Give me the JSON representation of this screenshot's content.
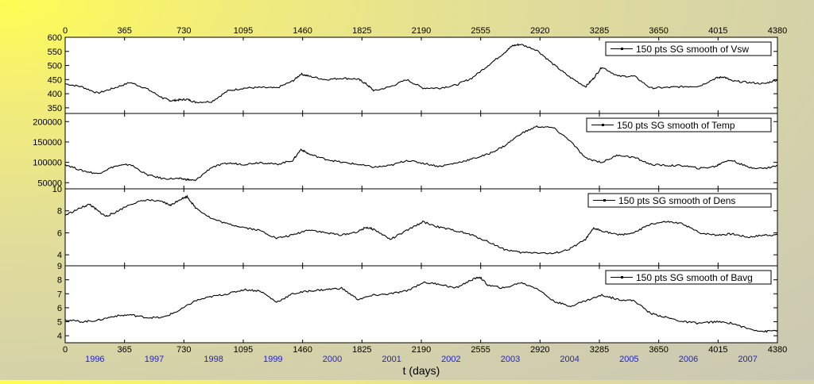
{
  "figure": {
    "xlabel": "t (days)",
    "x_ticks": [
      0,
      365,
      730,
      1095,
      1460,
      1825,
      2190,
      2555,
      2920,
      3285,
      3650,
      4015,
      4380
    ],
    "year_labels": [
      "1996",
      "1997",
      "1998",
      "1999",
      "2000",
      "2001",
      "2002",
      "2003",
      "2004",
      "2005",
      "2006",
      "2007"
    ],
    "colors": {
      "line": "#000000",
      "year_text": "#2222cc",
      "panel_bg": "#ffffff"
    }
  },
  "chart_data": [
    {
      "type": "line",
      "legend": "150 pts SG smooth of Vsw",
      "xlim": [
        0,
        4380
      ],
      "ylim": [
        330,
        600
      ],
      "y_ticks": [
        350,
        400,
        450,
        500,
        550,
        600
      ],
      "x": [
        0,
        100,
        200,
        300,
        400,
        500,
        600,
        650,
        700,
        750,
        800,
        900,
        1000,
        1100,
        1200,
        1300,
        1400,
        1450,
        1500,
        1600,
        1700,
        1800,
        1850,
        1900,
        2000,
        2100,
        2200,
        2300,
        2400,
        2500,
        2600,
        2700,
        2750,
        2800,
        2900,
        3000,
        3100,
        3200,
        3250,
        3300,
        3400,
        3500,
        3600,
        3700,
        3800,
        3900,
        4000,
        4050,
        4100,
        4200,
        4300,
        4380
      ],
      "y": [
        435,
        425,
        402,
        420,
        440,
        418,
        385,
        375,
        378,
        380,
        370,
        372,
        410,
        420,
        422,
        420,
        445,
        470,
        462,
        450,
        455,
        452,
        435,
        410,
        425,
        450,
        420,
        420,
        430,
        455,
        500,
        545,
        570,
        575,
        555,
        505,
        460,
        425,
        455,
        495,
        462,
        462,
        420,
        422,
        425,
        427,
        455,
        460,
        445,
        440,
        435,
        450
      ]
    },
    {
      "type": "line",
      "legend": "150 pts SG smooth of Temp",
      "xlim": [
        0,
        4380
      ],
      "ylim": [
        35000,
        220000
      ],
      "y_ticks": [
        50000,
        100000,
        150000,
        200000
      ],
      "x": [
        0,
        100,
        200,
        300,
        400,
        500,
        600,
        700,
        750,
        800,
        900,
        1000,
        1100,
        1200,
        1300,
        1400,
        1450,
        1500,
        1600,
        1700,
        1800,
        1900,
        2000,
        2100,
        2200,
        2300,
        2400,
        2500,
        2600,
        2700,
        2800,
        2900,
        3000,
        3100,
        3200,
        3300,
        3400,
        3500,
        3600,
        3700,
        3800,
        3900,
        4000,
        4050,
        4100,
        4200,
        4300,
        4380
      ],
      "y": [
        95000,
        80000,
        72000,
        90000,
        95000,
        70000,
        60000,
        60000,
        58000,
        55000,
        88000,
        98000,
        95000,
        100000,
        95000,
        105000,
        132000,
        120000,
        108000,
        100000,
        95000,
        88000,
        92000,
        105000,
        98000,
        90000,
        98000,
        108000,
        120000,
        140000,
        170000,
        188000,
        185000,
        155000,
        110000,
        100000,
        118000,
        112000,
        95000,
        92000,
        92000,
        85000,
        90000,
        102000,
        105000,
        88000,
        85000,
        92000
      ]
    },
    {
      "type": "line",
      "legend": "150 pts SG smooth of Dens",
      "xlim": [
        0,
        4380
      ],
      "ylim": [
        3,
        10
      ],
      "y_ticks": [
        4,
        6,
        8,
        10
      ],
      "x": [
        0,
        100,
        150,
        200,
        250,
        300,
        400,
        500,
        600,
        650,
        700,
        750,
        800,
        900,
        1000,
        1100,
        1200,
        1300,
        1400,
        1500,
        1600,
        1700,
        1800,
        1850,
        1900,
        2000,
        2100,
        2200,
        2300,
        2400,
        2500,
        2600,
        2700,
        2800,
        2900,
        3000,
        3100,
        3200,
        3250,
        3300,
        3400,
        3500,
        3600,
        3700,
        3800,
        3900,
        4000,
        4100,
        4200,
        4300,
        4380
      ],
      "y": [
        7.6,
        8.3,
        8.6,
        8.0,
        7.5,
        7.8,
        8.6,
        9.0,
        8.8,
        8.5,
        9.0,
        9.3,
        8.3,
        7.3,
        6.8,
        6.5,
        6.2,
        5.5,
        5.8,
        6.3,
        6.0,
        5.8,
        6.1,
        6.5,
        6.3,
        5.4,
        6.2,
        7.0,
        6.5,
        6.2,
        5.8,
        5.2,
        4.5,
        4.2,
        4.2,
        4.1,
        4.5,
        5.4,
        6.4,
        6.2,
        5.8,
        6.0,
        6.8,
        7.0,
        6.8,
        6.0,
        5.8,
        5.9,
        5.6,
        5.8,
        5.8
      ]
    },
    {
      "type": "line",
      "legend": "150 pts SG smooth of Bavg",
      "xlim": [
        0,
        4380
      ],
      "ylim": [
        3.5,
        9
      ],
      "y_ticks": [
        4,
        5,
        6,
        7,
        8,
        9
      ],
      "x": [
        0,
        100,
        200,
        300,
        400,
        500,
        600,
        700,
        800,
        900,
        1000,
        1100,
        1200,
        1300,
        1400,
        1500,
        1600,
        1700,
        1800,
        1900,
        2000,
        2100,
        2200,
        2300,
        2400,
        2500,
        2550,
        2600,
        2700,
        2800,
        2900,
        3000,
        3100,
        3200,
        3300,
        3400,
        3500,
        3600,
        3700,
        3800,
        3900,
        4000,
        4100,
        4200,
        4300,
        4380
      ],
      "y": [
        5.15,
        5.0,
        5.1,
        5.4,
        5.5,
        5.3,
        5.3,
        5.8,
        6.5,
        6.8,
        7.0,
        7.3,
        7.2,
        6.4,
        7.0,
        7.2,
        7.3,
        7.4,
        6.6,
        6.9,
        7.0,
        7.2,
        7.8,
        7.7,
        7.4,
        8.0,
        8.2,
        7.6,
        7.4,
        7.8,
        7.4,
        6.5,
        6.1,
        6.5,
        6.9,
        6.6,
        6.5,
        5.6,
        5.3,
        5.0,
        4.9,
        5.0,
        4.9,
        4.5,
        4.3,
        4.4
      ]
    }
  ]
}
